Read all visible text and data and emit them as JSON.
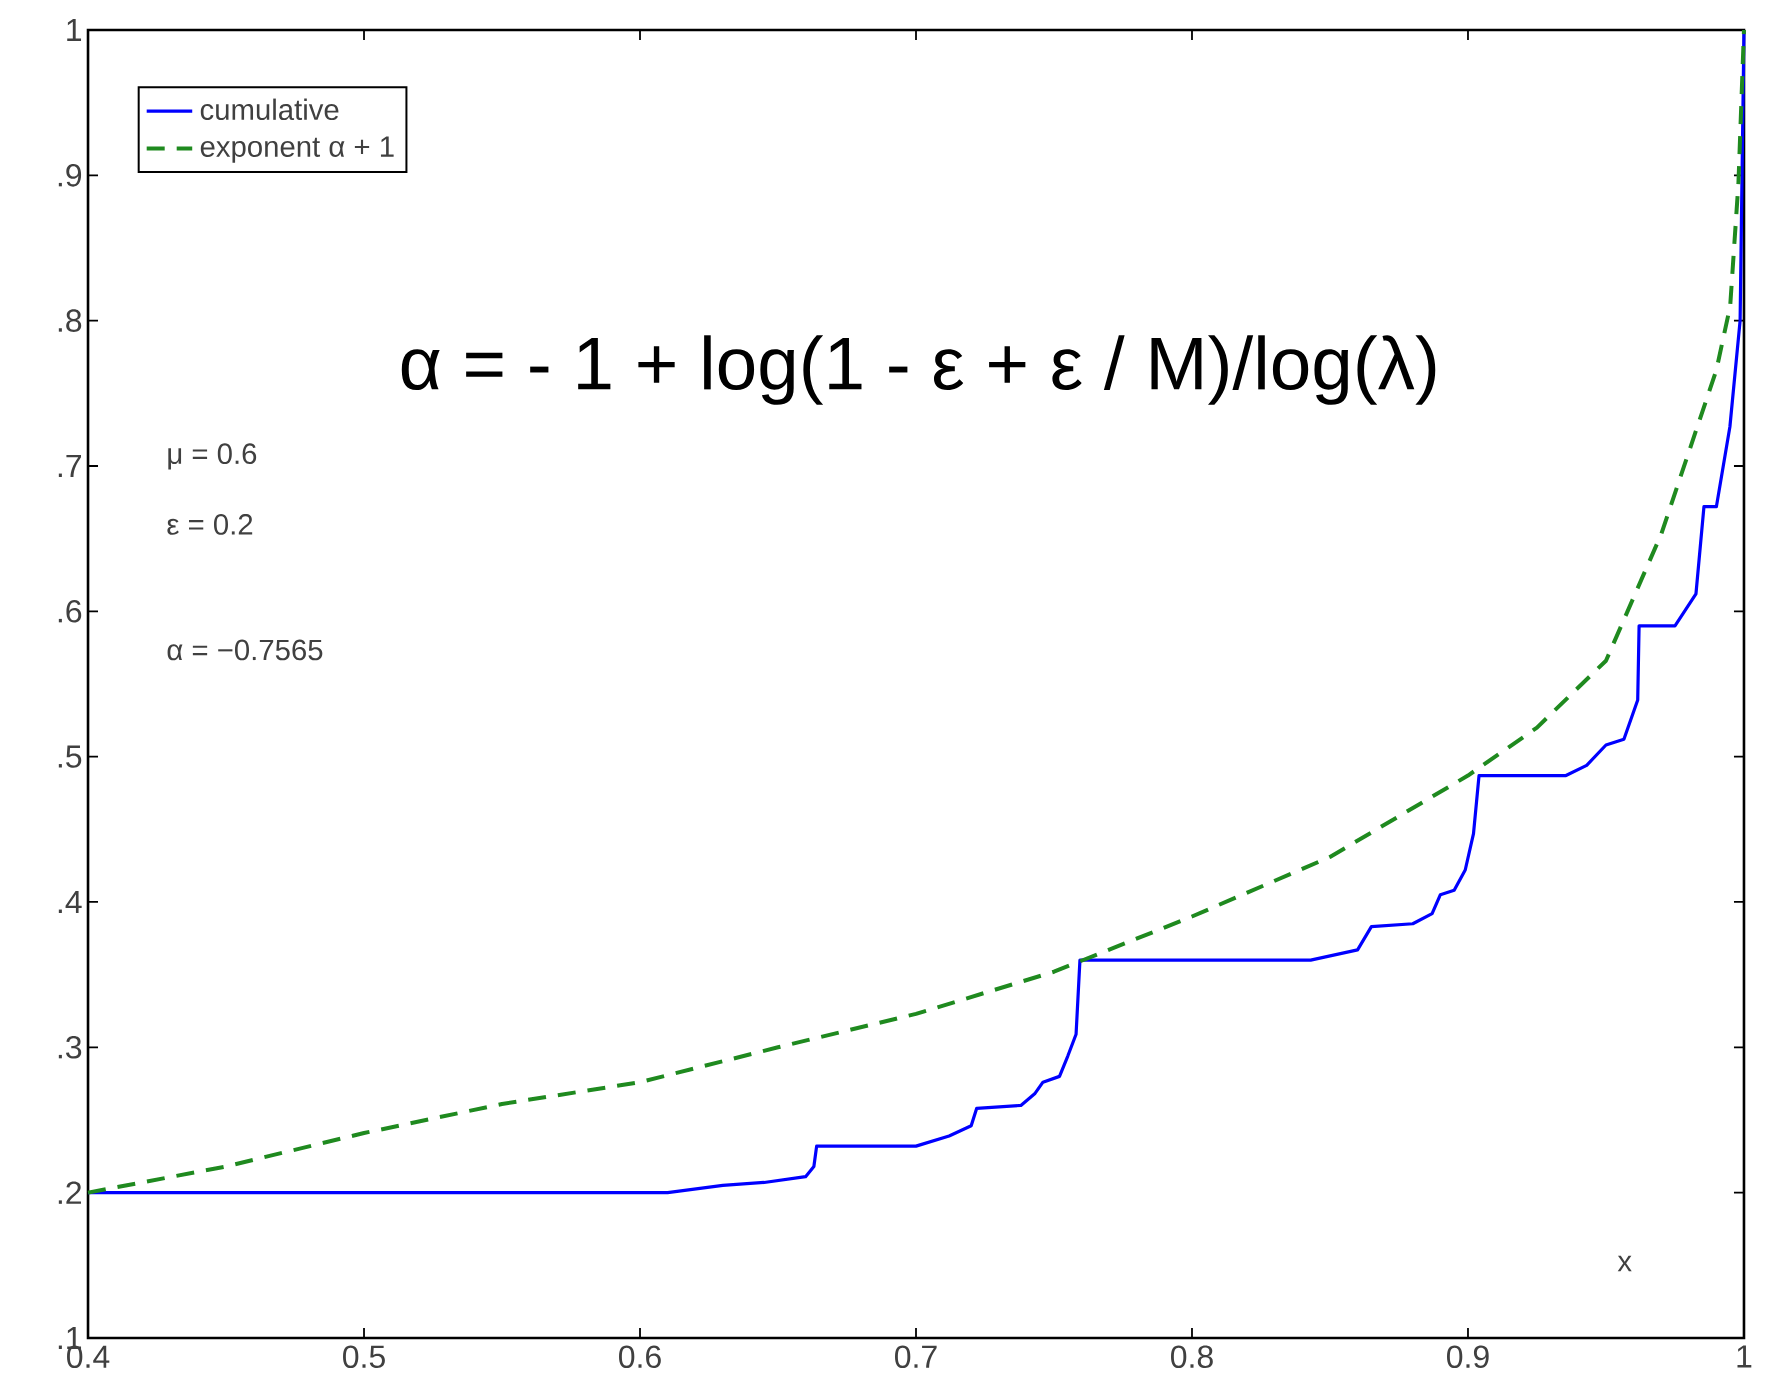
{
  "chart_data": {
    "type": "line",
    "xlabel": "x",
    "xlim": [
      0.4,
      1
    ],
    "ylim": [
      0.1,
      1
    ],
    "xticks": [
      0.4,
      0.5,
      0.6,
      0.7,
      0.8,
      0.9,
      1
    ],
    "yticks": [
      {
        "value": 0.1,
        "label": ".1"
      },
      {
        "value": 0.2,
        "label": ".2"
      },
      {
        "value": 0.3,
        "label": ".3"
      },
      {
        "value": 0.4,
        "label": ".4"
      },
      {
        "value": 0.5,
        "label": ".5"
      },
      {
        "value": 0.6,
        "label": ".6"
      },
      {
        "value": 0.7,
        "label": ".7"
      },
      {
        "value": 0.8,
        "label": ".8"
      },
      {
        "value": 0.9,
        "label": ".9"
      },
      {
        "value": 1,
        "label": "1"
      }
    ],
    "legend": "top left",
    "marker": "none",
    "annotations": [
      "α = - 1 +  log(1 - ε + ε / M)/log(λ)",
      "μ = 0.6",
      "ε = 0.2",
      "α = −0.7565"
    ],
    "series": [
      {
        "name": "cumulative",
        "color": "#0000ff",
        "line_style": "solid",
        "x": [
          0.4,
          0.61,
          0.63,
          0.645,
          0.66,
          0.663,
          0.664,
          0.7,
          0.712,
          0.72,
          0.722,
          0.738,
          0.743,
          0.746,
          0.752,
          0.755,
          0.758,
          0.7594,
          0.843,
          0.86,
          0.865,
          0.88,
          0.887,
          0.89,
          0.895,
          0.899,
          0.902,
          0.904,
          0.9355,
          0.943,
          0.95,
          0.9565,
          0.9615,
          0.962,
          0.975,
          0.9826,
          0.9855,
          0.99,
          0.9949,
          0.9986,
          1.0
        ],
        "values": [
          0.2,
          0.2,
          0.205,
          0.207,
          0.211,
          0.218,
          0.232,
          0.232,
          0.239,
          0.246,
          0.258,
          0.26,
          0.268,
          0.276,
          0.28,
          0.294,
          0.309,
          0.36,
          0.36,
          0.367,
          0.383,
          0.385,
          0.392,
          0.405,
          0.408,
          0.422,
          0.447,
          0.487,
          0.487,
          0.494,
          0.508,
          0.512,
          0.539,
          0.59,
          0.59,
          0.612,
          0.672,
          0.672,
          0.727,
          0.8,
          1.0
        ]
      },
      {
        "name": "exponent α + 1",
        "color": "#1f8a1f",
        "line_style": "dashed",
        "x": [
          0.4,
          0.45,
          0.5,
          0.55,
          0.6,
          0.65,
          0.7,
          0.75,
          0.8,
          0.85,
          0.9,
          0.925,
          0.95,
          0.97,
          0.99,
          0.995,
          0.998,
          1.0
        ],
        "values": [
          0.2,
          0.218,
          0.241,
          0.261,
          0.276,
          0.3,
          0.323,
          0.352,
          0.39,
          0.431,
          0.487,
          0.52,
          0.566,
          0.653,
          0.766,
          0.81,
          0.895,
          1.0
        ]
      }
    ]
  }
}
